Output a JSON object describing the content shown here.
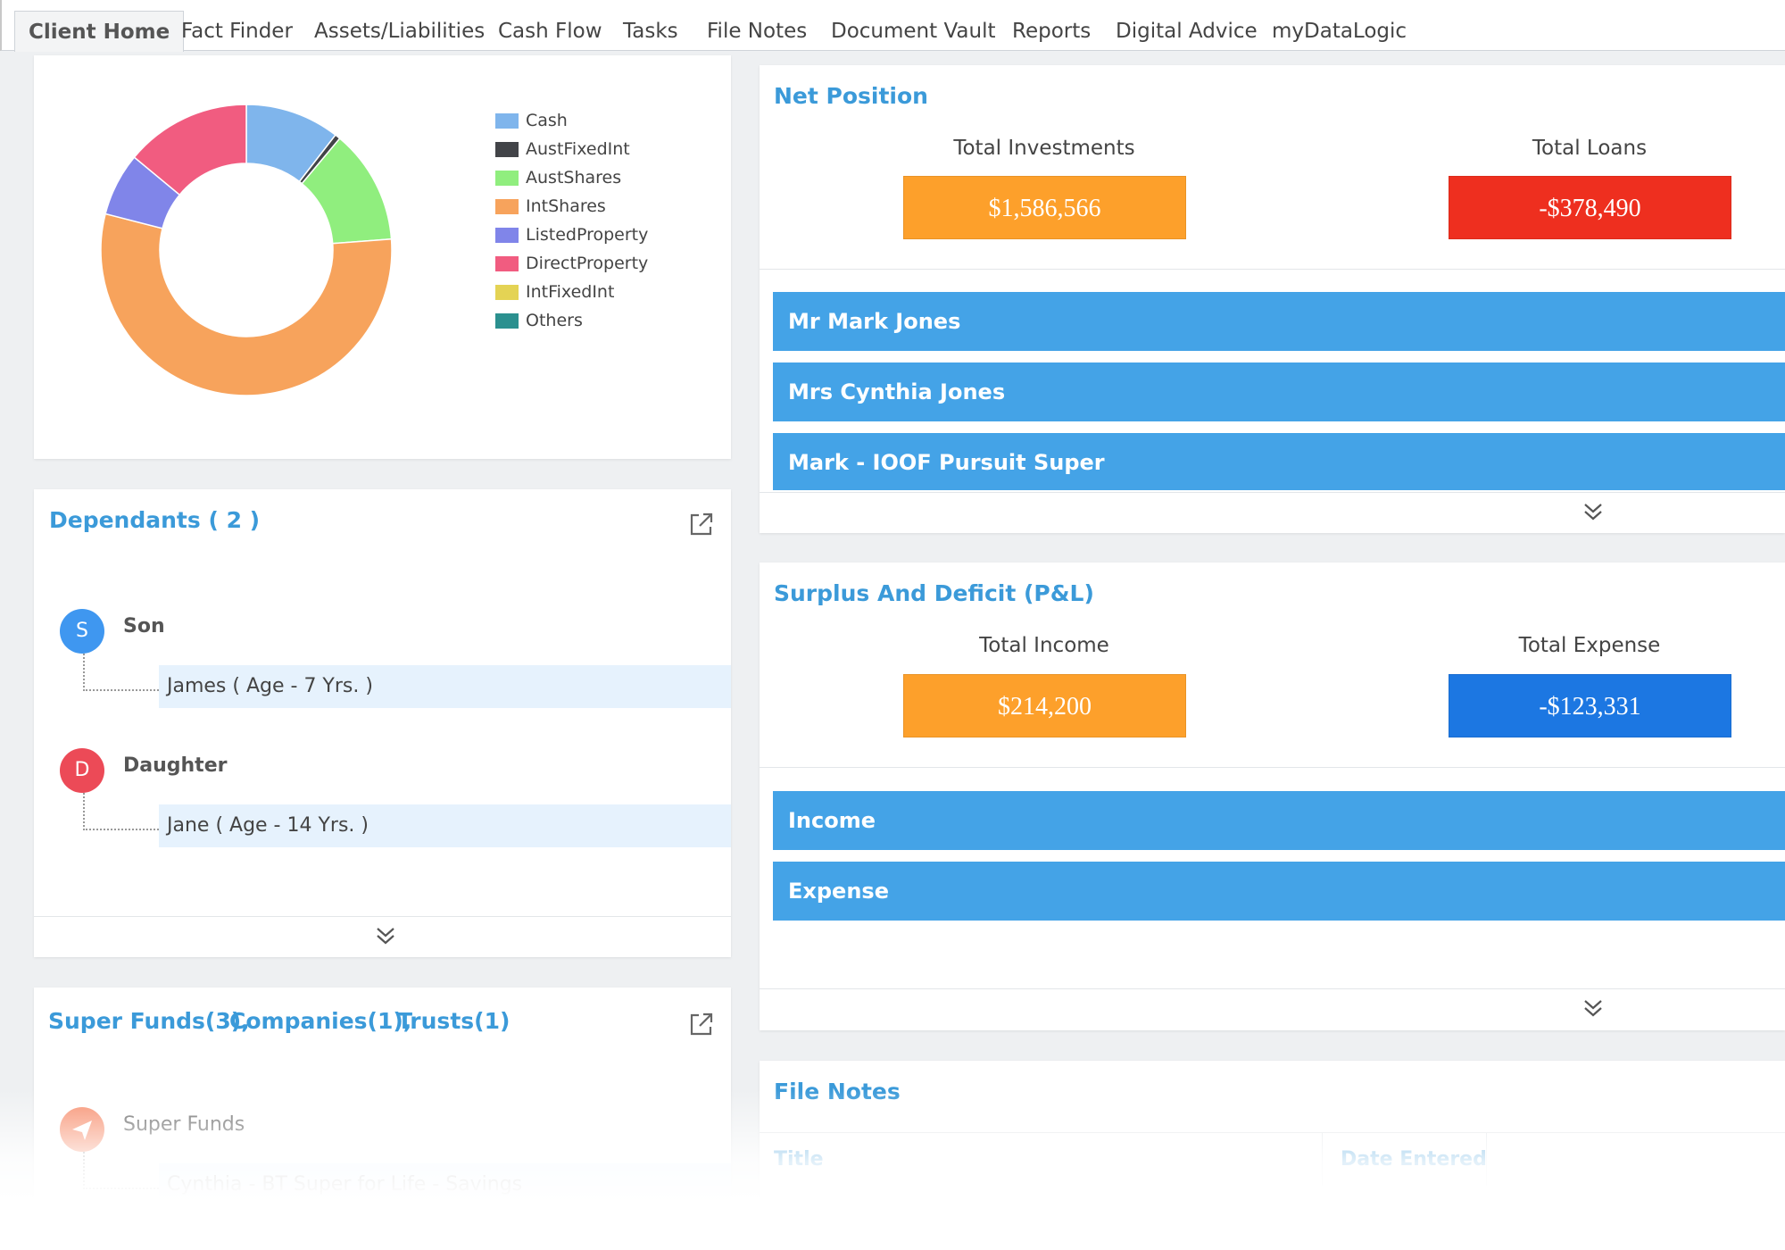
{
  "tabs": [
    {
      "label": "Client Home",
      "active": true
    },
    {
      "label": "Fact Finder"
    },
    {
      "label": "Assets/Liabilities"
    },
    {
      "label": "Cash Flow"
    },
    {
      "label": "Tasks"
    },
    {
      "label": "File Notes"
    },
    {
      "label": "Document Vault"
    },
    {
      "label": "Reports"
    },
    {
      "label": "Digital Advice"
    },
    {
      "label": "myDataLogic"
    }
  ],
  "chart_data": {
    "type": "pie",
    "donut": true,
    "legend_position": "right",
    "categories": [
      "Cash",
      "AustFixedInt",
      "AustShares",
      "IntShares",
      "ListedProperty",
      "DirectProperty",
      "IntFixedInt",
      "Others"
    ],
    "values": [
      10.5,
      0.6,
      12.7,
      55.2,
      7.0,
      14.0,
      0,
      0
    ],
    "colors": [
      "#7fb5ec",
      "#424448",
      "#90ee7e",
      "#f7a35c",
      "#8085e9",
      "#f15c80",
      "#e4d354",
      "#2b908f"
    ]
  },
  "dependants": {
    "title": "Dependants ( 2 )",
    "groups": [
      {
        "initial": "S",
        "relation": "Son",
        "color": "#3f97f0",
        "member": "James ( Age - 7 Yrs. )"
      },
      {
        "initial": "D",
        "relation": "Daughter",
        "color": "#ec4a57",
        "member": "Jane ( Age - 14 Yrs. )"
      }
    ]
  },
  "entities": {
    "super_funds_link": "Super Funds(3),",
    "companies_link": "Companies(1),",
    "trusts_link": "Trusts(1)",
    "group_label": "Super Funds",
    "group_color": "#f78e6d",
    "first_item": "Cynthia - BT Super for Life - Savings"
  },
  "net_position": {
    "title": "Net Position",
    "investments_label": "Total Investments",
    "investments_value": "$1,586,566",
    "loans_label": "Total Loans",
    "loans_value": "-$378,490",
    "investments_color": "#fda02b",
    "loans_color": "#ee2f1f",
    "accounts": [
      "Mr Mark Jones",
      "Mrs Cynthia Jones",
      "Mark - IOOF Pursuit Super"
    ]
  },
  "surplus": {
    "title": "Surplus And Deficit (P&L)",
    "income_label": "Total Income",
    "income_value": "$214,200",
    "expense_label": "Total Expense",
    "expense_value": "-$123,331",
    "income_color": "#fda02b",
    "expense_color": "#1c77e2",
    "sections": [
      "Income",
      "Expense"
    ]
  },
  "file_notes": {
    "title": "File Notes",
    "col_title": "Title",
    "col_date": "Date Entered"
  }
}
